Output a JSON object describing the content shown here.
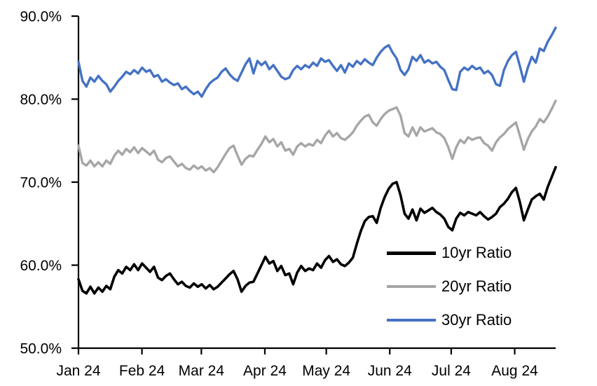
{
  "chart_data": {
    "type": "line",
    "title": "",
    "xlabel": "",
    "ylabel": "",
    "grid": false,
    "legend_position": "inside lower right",
    "ylim": [
      50,
      90
    ],
    "y_axis": {
      "tick_labels": [
        "90.0%",
        "80.0%",
        "70.0%",
        "60.0%",
        "50.0%"
      ],
      "tick_values": [
        90,
        80,
        70,
        60,
        50
      ]
    },
    "x_axis": {
      "tick_labels": [
        "Jan 24",
        "Feb 24",
        "Mar 24",
        "Apr 24",
        "May 24",
        "Jun 24",
        "Jul 24",
        "Aug 24"
      ],
      "tick_days": [
        0,
        31,
        60,
        91,
        121,
        152,
        182,
        213
      ],
      "total_days": 233
    },
    "series": [
      {
        "name": "10yr Ratio",
        "color": "#000000",
        "values": [
          58.3,
          56.9,
          56.6,
          57.4,
          56.6,
          57.3,
          56.8,
          57.5,
          57.1,
          58.6,
          59.4,
          59.0,
          59.8,
          59.4,
          60.1,
          59.4,
          60.2,
          59.7,
          59.2,
          59.8,
          58.5,
          58.2,
          58.7,
          59.0,
          58.3,
          57.7,
          58.0,
          57.5,
          57.3,
          57.8,
          57.4,
          57.7,
          57.2,
          57.6,
          57.1,
          57.4,
          57.9,
          58.4,
          58.9,
          59.3,
          58.3,
          56.8,
          57.5,
          57.9,
          58.0,
          59.0,
          60.0,
          61.0,
          60.2,
          60.5,
          59.3,
          59.9,
          58.8,
          59.0,
          57.7,
          59.1,
          59.9,
          59.3,
          59.6,
          59.4,
          60.2,
          59.7,
          60.6,
          61.1,
          60.4,
          60.7,
          60.1,
          59.9,
          60.3,
          60.9,
          62.6,
          64.1,
          65.3,
          65.8,
          65.9,
          65.1,
          66.9,
          68.2,
          69.2,
          69.8,
          70.0,
          68.4,
          66.2,
          65.6,
          66.7,
          65.4,
          66.8,
          66.3,
          66.6,
          66.9,
          66.4,
          66.1,
          65.6,
          64.6,
          64.2,
          65.6,
          66.3,
          66.0,
          66.4,
          66.2,
          66.0,
          66.4,
          65.9,
          65.5,
          65.8,
          66.2,
          67.0,
          67.4,
          68.0,
          68.8,
          69.3,
          67.6,
          65.4,
          66.7,
          67.9,
          68.3,
          68.6,
          67.9,
          69.4,
          70.6,
          71.8
        ]
      },
      {
        "name": "20yr Ratio",
        "color": "#A6A6A6",
        "values": [
          74.4,
          72.3,
          72.0,
          72.6,
          71.9,
          72.4,
          71.9,
          72.6,
          72.2,
          73.2,
          73.8,
          73.3,
          74.0,
          73.6,
          74.2,
          73.5,
          74.1,
          73.7,
          73.3,
          73.8,
          72.7,
          72.4,
          72.9,
          73.1,
          72.5,
          71.9,
          72.2,
          71.7,
          71.5,
          72.0,
          71.6,
          71.9,
          71.4,
          71.7,
          71.2,
          71.8,
          72.6,
          73.4,
          74.1,
          74.4,
          73.2,
          72.1,
          72.8,
          73.2,
          73.1,
          73.9,
          74.6,
          75.5,
          74.8,
          75.2,
          74.3,
          74.8,
          73.8,
          74.0,
          73.3,
          74.3,
          74.7,
          74.3,
          74.6,
          74.4,
          75.1,
          74.7,
          75.6,
          76.2,
          75.5,
          75.9,
          75.3,
          75.1,
          75.5,
          76.0,
          76.8,
          77.4,
          77.9,
          78.1,
          77.2,
          76.8,
          77.6,
          78.2,
          78.6,
          78.8,
          79.0,
          78.0,
          75.9,
          75.5,
          76.6,
          75.6,
          76.6,
          76.1,
          76.3,
          76.5,
          76.0,
          75.8,
          75.3,
          74.2,
          72.8,
          74.2,
          75.1,
          74.7,
          75.4,
          75.1,
          75.3,
          75.4,
          74.7,
          74.4,
          73.8,
          74.8,
          75.4,
          75.8,
          76.4,
          76.8,
          77.2,
          75.6,
          73.9,
          75.2,
          76.1,
          76.7,
          77.6,
          77.2,
          77.9,
          78.8,
          79.8
        ]
      },
      {
        "name": "30yr Ratio",
        "color": "#4472C4",
        "values": [
          84.5,
          82.2,
          81.5,
          82.6,
          82.1,
          82.8,
          82.2,
          81.8,
          80.9,
          81.5,
          82.2,
          82.7,
          83.3,
          83.0,
          83.5,
          83.1,
          83.8,
          83.3,
          83.5,
          82.7,
          82.9,
          82.1,
          82.4,
          82.0,
          81.7,
          81.9,
          81.2,
          81.5,
          81.0,
          80.6,
          80.9,
          80.3,
          81.2,
          81.9,
          82.3,
          82.6,
          83.3,
          83.7,
          83.0,
          82.5,
          82.2,
          83.2,
          84.2,
          84.9,
          83.1,
          84.6,
          84.1,
          84.5,
          83.6,
          84.1,
          83.4,
          82.7,
          82.4,
          82.6,
          83.5,
          84.0,
          83.6,
          84.1,
          83.8,
          84.4,
          84.0,
          84.9,
          84.5,
          84.7,
          84.0,
          83.4,
          84.1,
          83.2,
          84.3,
          83.9,
          84.6,
          84.2,
          84.8,
          84.4,
          84.1,
          85.0,
          85.7,
          86.2,
          86.5,
          85.6,
          84.9,
          83.5,
          82.9,
          83.6,
          85.1,
          84.6,
          85.3,
          84.4,
          84.7,
          84.3,
          84.5,
          83.9,
          83.5,
          82.3,
          81.2,
          81.1,
          83.3,
          83.8,
          83.5,
          84.0,
          83.6,
          83.8,
          83.1,
          83.4,
          82.9,
          81.8,
          81.6,
          83.5,
          84.6,
          85.3,
          85.7,
          84.0,
          82.1,
          83.8,
          85.1,
          84.4,
          86.1,
          85.8,
          86.9,
          87.7,
          88.6
        ]
      }
    ]
  }
}
